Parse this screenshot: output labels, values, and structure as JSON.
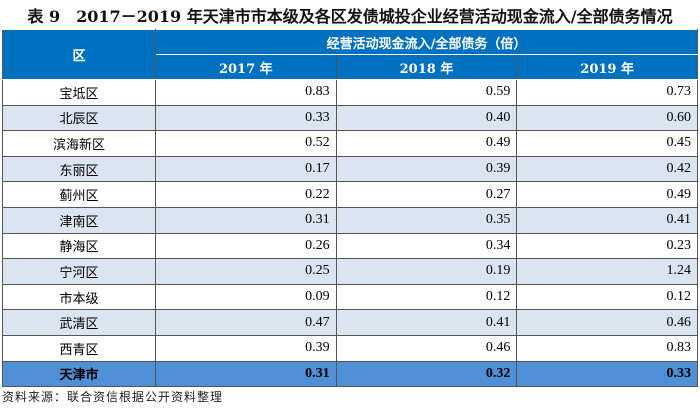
{
  "title": "表 9　2017－2019 年天津市市本级及各区发债城投企业经营活动现金流入/全部债务情况",
  "table": {
    "col_region": "区",
    "group_header": "经营活动现金流入/全部债务（倍）",
    "years": [
      "2017 年",
      "2018 年",
      "2019 年"
    ],
    "rows": [
      {
        "name": "宝坻区",
        "v": [
          "0.83",
          "0.59",
          "0.73"
        ]
      },
      {
        "name": "北辰区",
        "v": [
          "0.33",
          "0.40",
          "0.60"
        ]
      },
      {
        "name": "滨海新区",
        "v": [
          "0.52",
          "0.49",
          "0.45"
        ]
      },
      {
        "name": "东丽区",
        "v": [
          "0.17",
          "0.39",
          "0.42"
        ]
      },
      {
        "name": "蓟州区",
        "v": [
          "0.22",
          "0.27",
          "0.49"
        ]
      },
      {
        "name": "津南区",
        "v": [
          "0.31",
          "0.35",
          "0.41"
        ]
      },
      {
        "name": "静海区",
        "v": [
          "0.26",
          "0.34",
          "0.23"
        ]
      },
      {
        "name": "宁河区",
        "v": [
          "0.25",
          "0.19",
          "1.24"
        ]
      },
      {
        "name": "市本级",
        "v": [
          "0.09",
          "0.12",
          "0.12"
        ]
      },
      {
        "name": "武清区",
        "v": [
          "0.47",
          "0.41",
          "0.46"
        ]
      },
      {
        "name": "西青区",
        "v": [
          "0.39",
          "0.46",
          "0.83"
        ]
      },
      {
        "name": "天津市",
        "v": [
          "0.31",
          "0.32",
          "0.33"
        ]
      }
    ]
  },
  "source": "资料来源：联合资信根据公开资料整理",
  "colors": {
    "header": "#0070c0",
    "alt_row": "#dbe5f1",
    "total_row": "#4f8fd6"
  }
}
